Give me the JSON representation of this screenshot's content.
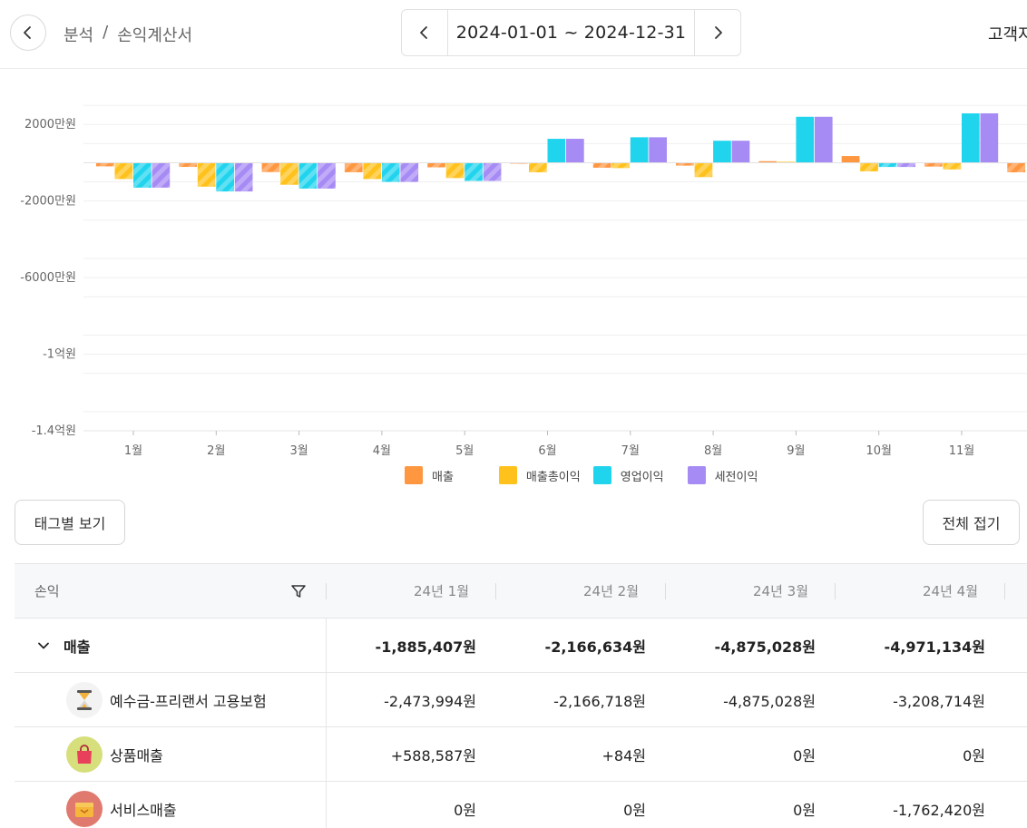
{
  "header": {
    "breadcrumb": [
      "분석",
      "/",
      "손익계산서"
    ],
    "date_range": "2024-01-01 ~ 2024-12-31",
    "right_label": "고객자"
  },
  "chart_data": {
    "type": "bar",
    "categories": [
      "1월",
      "2월",
      "3월",
      "4월",
      "5월",
      "6월",
      "7월",
      "8월",
      "9월",
      "10월",
      "11월"
    ],
    "y_ticks": [
      "2000만원",
      "-2000만원",
      "-6000만원",
      "-1억원",
      "-1.4억원"
    ],
    "y_tick_values": [
      20000000,
      -20000000,
      -60000000,
      -100000000,
      -140000000
    ],
    "ylim": [
      -140000000,
      40000000
    ],
    "grid": true,
    "legend_position": "bottom",
    "series": [
      {
        "name": "매출",
        "color": "#ff9640",
        "values": [
          -1885407,
          -2166634,
          -4875028,
          -4971134,
          -2400000,
          -500000,
          -2600000,
          -1500000,
          800000,
          3500000,
          -2000000
        ]
      },
      {
        "name": "매출총이익",
        "color": "#ffc21d",
        "values": [
          -8500000,
          -12500000,
          -11500000,
          -8500000,
          -8000000,
          -5000000,
          -2800000,
          -7500000,
          500000,
          -4500000,
          -3500000
        ]
      },
      {
        "name": "영업이익",
        "color": "#21d4ee",
        "values": [
          -13000000,
          -15000000,
          -13500000,
          -10000000,
          -9500000,
          12500000,
          13300000,
          11500000,
          24000000,
          -2200000,
          25800000
        ]
      },
      {
        "name": "세전이익",
        "color": "#a68bf4",
        "values": [
          -13000000,
          -15000000,
          -13500000,
          -10000000,
          -9500000,
          12500000,
          13300000,
          11500000,
          24000000,
          -2200000,
          25800000
        ]
      }
    ]
  },
  "buttons": {
    "tag_view": "태그별 보기",
    "collapse_all": "전체 접기"
  },
  "table": {
    "first_header": "손익",
    "columns": [
      "24년 1월",
      "24년 2월",
      "24년 3월",
      "24년 4월"
    ],
    "group": {
      "label": "매출",
      "values": [
        "-1,885,407원",
        "-2,166,634원",
        "-4,875,028원",
        "-4,971,134원"
      ]
    },
    "rows": [
      {
        "label": "예수금-프리랜서 고용보험",
        "icon": "hourglass-icon",
        "values": [
          "-2,473,994원",
          "-2,166,718원",
          "-4,875,028원",
          "-3,208,714원"
        ]
      },
      {
        "label": "상품매출",
        "icon": "shopping-bag-icon",
        "values": [
          "+588,587원",
          "+84원",
          "0원",
          "0원"
        ]
      },
      {
        "label": "서비스매출",
        "icon": "service-box-icon",
        "values": [
          "0원",
          "0원",
          "0원",
          "-1,762,420원"
        ]
      }
    ]
  }
}
